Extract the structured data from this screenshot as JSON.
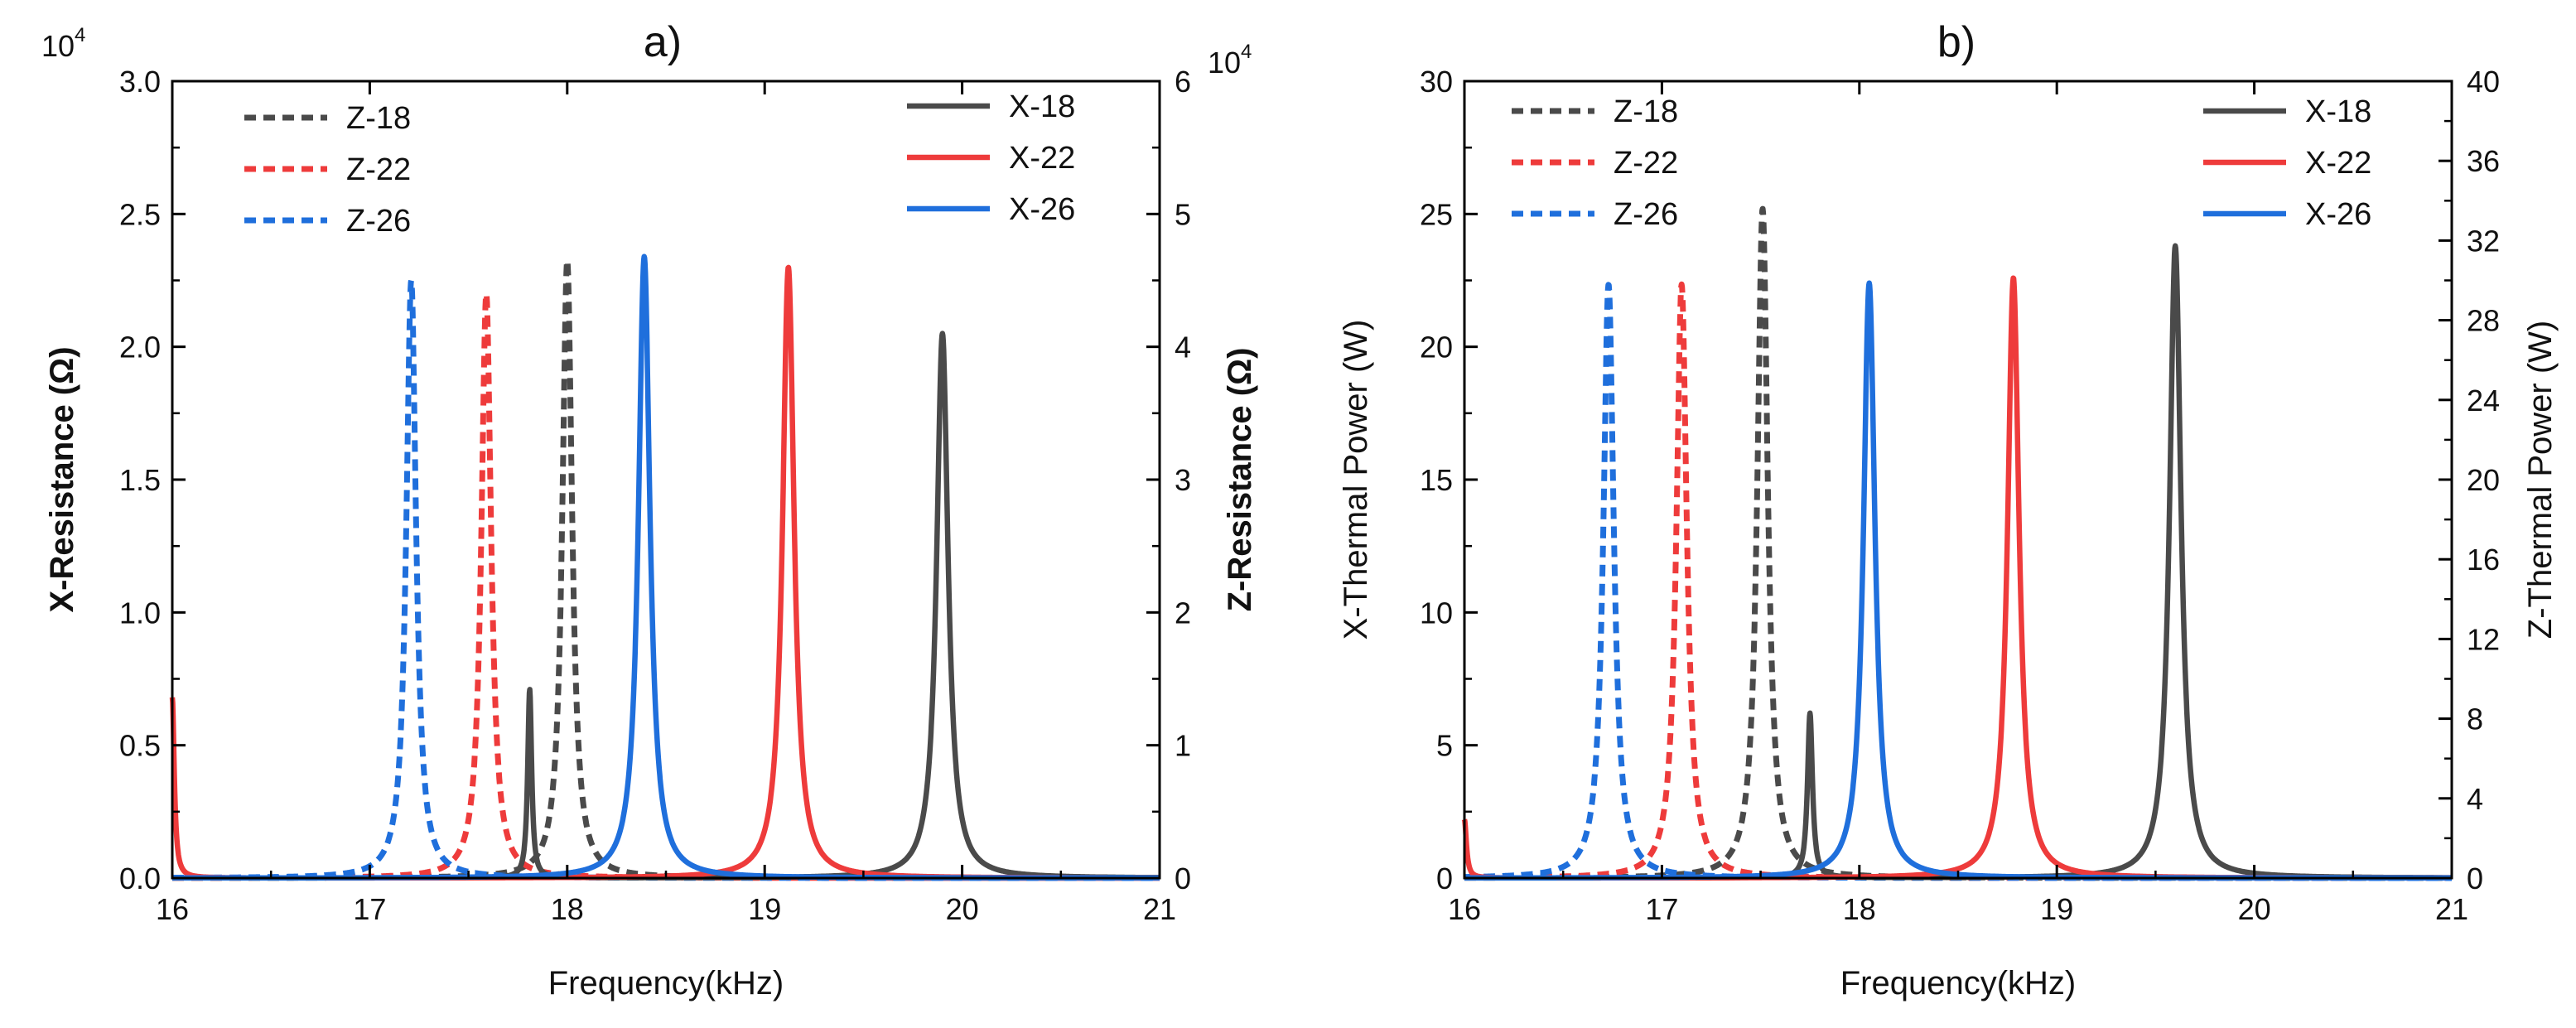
{
  "chart_data": [
    {
      "type": "line",
      "panel_label": "a)",
      "xlabel": "Frequency(kHz)",
      "ylabel_left": "X-Resistance (Ω)",
      "ylabel_right": "Z-Resistance (Ω)",
      "multiplier_left": "10",
      "multiplier_left_exp": "4",
      "multiplier_right": "10",
      "multiplier_right_exp": "4",
      "xlim": [
        16,
        21
      ],
      "ylim_left": [
        0,
        3.0
      ],
      "ylim_right": [
        0,
        6
      ],
      "xticks": [
        16,
        17,
        18,
        19,
        20,
        21
      ],
      "xtick_labels": [
        "16",
        "17",
        "18",
        "19",
        "20",
        "21"
      ],
      "yticks_left": [
        0,
        0.5,
        1.0,
        1.5,
        2.0,
        2.5,
        3.0
      ],
      "ytick_labels_left": [
        "0.0",
        "0.5",
        "1.0",
        "1.5",
        "2.0",
        "2.5",
        "3.0"
      ],
      "yticks_right": [
        0,
        1,
        2,
        3,
        4,
        5,
        6
      ],
      "ytick_labels_right": [
        "0",
        "1",
        "2",
        "3",
        "4",
        "5",
        "6"
      ],
      "legend_left": [
        "Z-18",
        "Z-22",
        "Z-26"
      ],
      "legend_right": [
        "X-18",
        "X-22",
        "X-26"
      ],
      "series": [
        {
          "name": "Z-18",
          "axis": "right",
          "style": "dashed",
          "color": "#4a4a4a",
          "peak_x": 18.0,
          "peak_y": 4.65,
          "width": 0.03
        },
        {
          "name": "Z-22",
          "axis": "right",
          "style": "dashed",
          "color": "#ee3b3b",
          "peak_x": 17.59,
          "peak_y": 4.4,
          "width": 0.03
        },
        {
          "name": "Z-26",
          "axis": "right",
          "style": "dashed",
          "color": "#1f6fdc",
          "peak_x": 17.21,
          "peak_y": 4.5,
          "width": 0.03
        },
        {
          "name": "X-18",
          "axis": "left",
          "style": "solid",
          "color": "#4a4a4a",
          "peak_x": 19.9,
          "peak_y": 2.05,
          "width": 0.035,
          "extra_peaks": [
            {
              "x": 17.81,
              "y": 0.71,
              "w": 0.012
            }
          ]
        },
        {
          "name": "X-22",
          "axis": "left",
          "style": "solid",
          "color": "#ee3b3b",
          "peak_x": 19.12,
          "peak_y": 2.3,
          "width": 0.035,
          "extra_peaks": [
            {
              "x": 16.0,
              "y": 0.68,
              "w": 0.012
            }
          ]
        },
        {
          "name": "X-26",
          "axis": "left",
          "style": "solid",
          "color": "#1f6fdc",
          "peak_x": 18.39,
          "peak_y": 2.34,
          "width": 0.035
        }
      ]
    },
    {
      "type": "line",
      "panel_label": "b)",
      "xlabel": "Frequency(kHz)",
      "ylabel_left": "X-Thermal Power (W)",
      "ylabel_right": "Z-Thermal Power (W)",
      "xlim": [
        16,
        21
      ],
      "ylim_left": [
        0,
        30
      ],
      "ylim_right": [
        0,
        40
      ],
      "xticks": [
        16,
        17,
        18,
        19,
        20,
        21
      ],
      "xtick_labels": [
        "16",
        "17",
        "18",
        "19",
        "20",
        "21"
      ],
      "yticks_left": [
        0,
        5,
        10,
        15,
        20,
        25,
        30
      ],
      "ytick_labels_left": [
        "0",
        "5",
        "10",
        "15",
        "20",
        "25",
        "30"
      ],
      "yticks_right": [
        0,
        4,
        8,
        12,
        16,
        20,
        24,
        28,
        32,
        36,
        40
      ],
      "ytick_labels_right": [
        "0",
        "4",
        "8",
        "12",
        "16",
        "20",
        "24",
        "28",
        "32",
        "36",
        "40"
      ],
      "legend_left": [
        "Z-18",
        "Z-22",
        "Z-26"
      ],
      "legend_right": [
        "X-18",
        "X-22",
        "X-26"
      ],
      "series": [
        {
          "name": "Z-18",
          "axis": "right",
          "style": "dashed",
          "color": "#4a4a4a",
          "peak_x": 17.51,
          "peak_y": 33.6,
          "width": 0.032
        },
        {
          "name": "Z-22",
          "axis": "right",
          "style": "dashed",
          "color": "#ee3b3b",
          "peak_x": 17.1,
          "peak_y": 29.8,
          "width": 0.032
        },
        {
          "name": "Z-26",
          "axis": "right",
          "style": "dashed",
          "color": "#1f6fdc",
          "peak_x": 16.73,
          "peak_y": 29.8,
          "width": 0.032
        },
        {
          "name": "X-18",
          "axis": "left",
          "style": "solid",
          "color": "#4a4a4a",
          "peak_x": 19.6,
          "peak_y": 23.8,
          "width": 0.035,
          "extra_peaks": [
            {
              "x": 17.75,
              "y": 6.2,
              "w": 0.015
            }
          ]
        },
        {
          "name": "X-22",
          "axis": "left",
          "style": "solid",
          "color": "#ee3b3b",
          "peak_x": 18.78,
          "peak_y": 22.6,
          "width": 0.035,
          "extra_peaks": [
            {
              "x": 16.0,
              "y": 2.2,
              "w": 0.012
            }
          ]
        },
        {
          "name": "X-26",
          "axis": "left",
          "style": "solid",
          "color": "#1f6fdc",
          "peak_x": 18.05,
          "peak_y": 22.4,
          "width": 0.035
        }
      ]
    }
  ]
}
